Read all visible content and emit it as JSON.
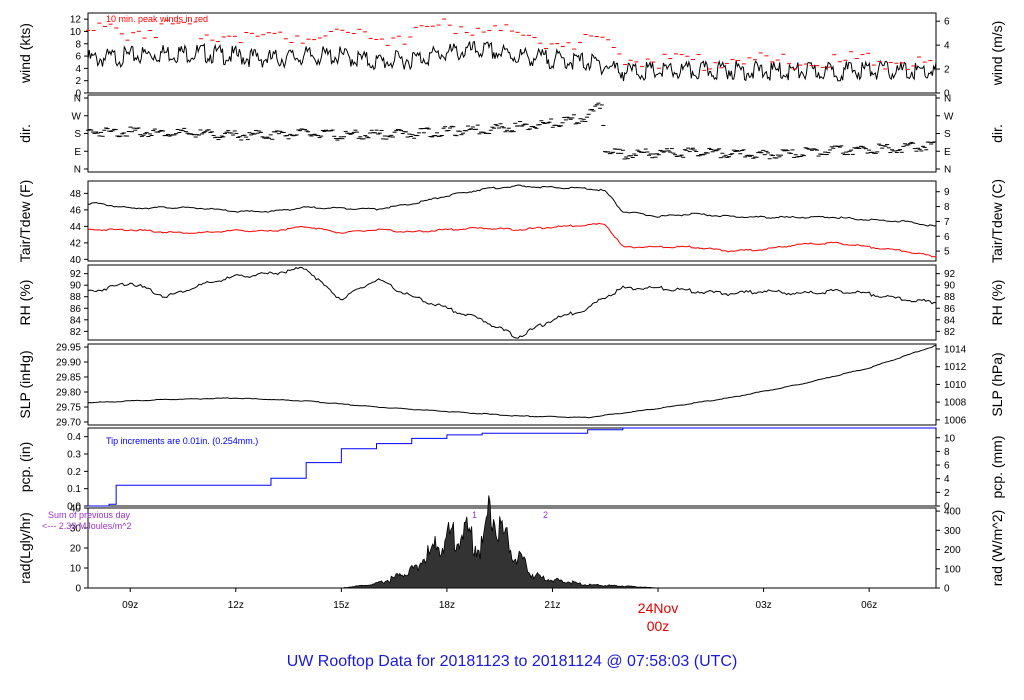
{
  "chart_data": {
    "type": "line",
    "footer_title": "UW Rooftop Data for 20181123  to  20181124 @ 07:58:03  (UTC)",
    "x_time_ticks": [
      "09z",
      "12z",
      "15z",
      "18z",
      "21z",
      "03z",
      "06z"
    ],
    "date_marker": {
      "date": "24Nov",
      "hour": "00z"
    },
    "x_range_hours_from_1800z": [
      -10.2,
      13.9
    ],
    "panels": [
      {
        "id": "wind",
        "ylabel_left": "wind (kts)",
        "ylabel_right": "wind (m/s)",
        "ylim_left": [
          0,
          13
        ],
        "ylim_right_ticks": [
          0,
          2,
          4,
          6
        ],
        "yticks_left": [
          0,
          2,
          4,
          6,
          8,
          10,
          12
        ],
        "annotation": "10 min. peak winds in red",
        "series": [
          {
            "color": "#000000",
            "x": [
              -10,
              -9,
              -8,
              -7,
              -6,
              -5,
              -4,
              -3,
              -2,
              -1,
              0,
              1,
              2,
              3,
              4,
              4.5,
              5,
              6,
              7,
              8,
              9,
              10,
              11,
              12,
              13,
              13.9
            ],
            "y": [
              5.5,
              6,
              6.5,
              6.5,
              6,
              5.5,
              6,
              6,
              5,
              5.5,
              6.5,
              7,
              6,
              5.5,
              5,
              4.5,
              3.5,
              3.5,
              3.5,
              3.8,
              3.5,
              3.5,
              3.5,
              3.8,
              3.5,
              3.5
            ]
          },
          {
            "color": "#ff0000",
            "x": [
              -10,
              -9,
              -8,
              -7,
              -6,
              -5,
              -4,
              -3,
              -2,
              -1,
              0,
              1,
              2,
              3,
              4,
              4.5,
              5,
              6,
              7,
              8,
              9,
              10,
              11,
              12,
              13,
              13.9
            ],
            "y": [
              10,
              10,
              10.5,
              10,
              9.5,
              9,
              9.5,
              10,
              9,
              9.5,
              11,
              10.5,
              9.5,
              8.5,
              8,
              7.5,
              6,
              5.5,
              5,
              5.5,
              5,
              5,
              5,
              5.5,
              5,
              4.5
            ]
          }
        ]
      },
      {
        "id": "dir",
        "ylabel_left": "dir.",
        "ylabel_right": "dir.",
        "yticks_left": [
          "N",
          "E",
          "S",
          "W",
          "N"
        ],
        "series": [
          {
            "color": "#000000",
            "x": [
              -10,
              -8,
              -6,
              -4,
              -3,
              -2,
              -1,
              0,
              1,
              2,
              3,
              4,
              4.4,
              4.5,
              5,
              6,
              7,
              8,
              9,
              10,
              11,
              12,
              13,
              13.9
            ],
            "y": [
              190,
              185,
              170,
              180,
              170,
              175,
              180,
              190,
              200,
              215,
              230,
              265,
              330,
              90,
              75,
              80,
              85,
              80,
              70,
              80,
              95,
              100,
              110,
              120
            ]
          }
        ]
      },
      {
        "id": "temp",
        "ylabel_left": "Tair/Tdew (F)",
        "ylabel_right": "Tair/Tdew (C)",
        "yticks_left": [
          40,
          42,
          44,
          46,
          48
        ],
        "yticks_right": [
          5,
          6,
          7,
          8,
          9
        ],
        "ylim_left": [
          39.8,
          49.5
        ],
        "series": [
          {
            "name": "Tair",
            "color": "#000000",
            "x": [
              -10,
              -9,
              -8,
              -7,
              -6,
              -5,
              -4,
              -3,
              -2,
              -1,
              0,
              1,
              2,
              3,
              4,
              4.5,
              5,
              6,
              7,
              8,
              9,
              10,
              11,
              12,
              13,
              13.9
            ],
            "y": [
              46.8,
              46.2,
              46.3,
              46.2,
              45.8,
              45.8,
              46.3,
              46.2,
              46.1,
              46.7,
              47.7,
              48.5,
              48.9,
              48.7,
              48.6,
              48.3,
              45.8,
              45.2,
              45.5,
              45.2,
              45.1,
              45.1,
              45.1,
              44.8,
              44.6,
              44.0
            ]
          },
          {
            "name": "Tdew",
            "color": "#ff0000",
            "x": [
              -10,
              -9,
              -8,
              -7,
              -6,
              -5,
              -4,
              -3,
              -2,
              -1,
              0,
              1,
              2,
              3,
              4,
              4.5,
              5,
              6,
              7,
              8,
              9,
              10,
              11,
              12,
              13,
              13.9
            ],
            "y": [
              43.6,
              43.6,
              43.3,
              43.2,
              43.5,
              43.4,
              44.0,
              43.2,
              43.6,
              43.3,
              43.6,
              43.8,
              43.6,
              43.9,
              44.2,
              44.3,
              41.5,
              41.5,
              41.5,
              41.0,
              41.2,
              41.8,
              42.0,
              41.5,
              41.0,
              40.3
            ]
          }
        ]
      },
      {
        "id": "rh",
        "ylabel_left": "RH (%)",
        "ylabel_right": "RH (%)",
        "yticks_left": [
          82,
          84,
          86,
          88,
          90,
          92
        ],
        "ylim_left": [
          80.5,
          93.5
        ],
        "series": [
          {
            "color": "#000000",
            "x": [
              -10,
              -9,
              -8,
              -7,
              -6,
              -5,
              -4,
              -3.5,
              -3,
              -2,
              -1,
              0,
              1,
              2,
              3,
              4,
              4.5,
              5,
              6,
              7,
              8,
              9,
              10,
              11,
              12,
              13,
              13.9
            ],
            "y": [
              89,
              90.5,
              88,
              90,
              91.5,
              92,
              93,
              90,
              87.5,
              91,
              88,
              86,
              84,
              81,
              84,
              86,
              88,
              89.5,
              89.5,
              89,
              88.5,
              89,
              88.5,
              89,
              88.5,
              87.5,
              87
            ]
          }
        ]
      },
      {
        "id": "slp",
        "ylabel_left": "SLP (inHg)",
        "ylabel_right": "SLP (hPa)",
        "yticks_left": [
          29.7,
          29.75,
          29.8,
          29.85,
          29.9,
          29.95
        ],
        "yticks_right": [
          1006,
          1008,
          1010,
          1012,
          1014
        ],
        "ylim_left": [
          29.69,
          29.96
        ],
        "series": [
          {
            "color": "#000000",
            "x": [
              -10,
              -8,
              -6,
              -4,
              -2,
              0,
              2,
              4,
              6,
              8,
              10,
              12,
              13.9
            ],
            "y": [
              29.765,
              29.775,
              29.78,
              29.77,
              29.75,
              29.735,
              29.72,
              29.715,
              29.745,
              29.78,
              29.825,
              29.88,
              29.955
            ]
          }
        ]
      },
      {
        "id": "pcp",
        "ylabel_left": "pcp. (in)",
        "ylabel_right": "pcp. (mm)",
        "yticks_left": [
          0.0,
          0.1,
          0.2,
          0.3,
          0.4
        ],
        "yticks_right": [
          0,
          2,
          4,
          6,
          8,
          10
        ],
        "ylim_left": [
          0,
          0.45
        ],
        "annotation": "Tip increments are 0.01in. (0.254mm.)",
        "series": [
          {
            "color": "#0000ff",
            "x": [
              -10.2,
              -9.6,
              -9.4,
              -7,
              -5,
              -4,
              -3,
              -2,
              -1,
              0,
              1,
              2,
              3,
              4,
              5,
              13.9
            ],
            "y": [
              0,
              0.01,
              0.12,
              0.12,
              0.16,
              0.25,
              0.33,
              0.36,
              0.39,
              0.41,
              0.42,
              0.42,
              0.42,
              0.44,
              0.45,
              0.45
            ]
          }
        ]
      },
      {
        "id": "rad",
        "ylabel_left": "rad(Lgly/hr)",
        "ylabel_right": "rad (W/m^2)",
        "yticks_left": [
          0,
          10,
          20,
          30,
          40
        ],
        "yticks_right": [
          0,
          100,
          200,
          300,
          400
        ],
        "ylim_left": [
          0,
          40
        ],
        "annotation_lines": [
          "Sum of previous day",
          "<--- 2.33 MJoules/m^2"
        ],
        "marker_labels": [
          "1",
          "2"
        ],
        "series": [
          {
            "color": "#000000",
            "fill": true,
            "x": [
              -3,
              -2,
              -1.5,
              -1,
              0,
              0.5,
              1,
              1.2,
              1.5,
              2,
              2.5,
              3,
              3.5,
              4,
              5,
              6
            ],
            "y": [
              0,
              2,
              5,
              9,
              25,
              28,
              20,
              40,
              30,
              15,
              6,
              4,
              3,
              1.5,
              1,
              0
            ]
          }
        ]
      }
    ]
  }
}
